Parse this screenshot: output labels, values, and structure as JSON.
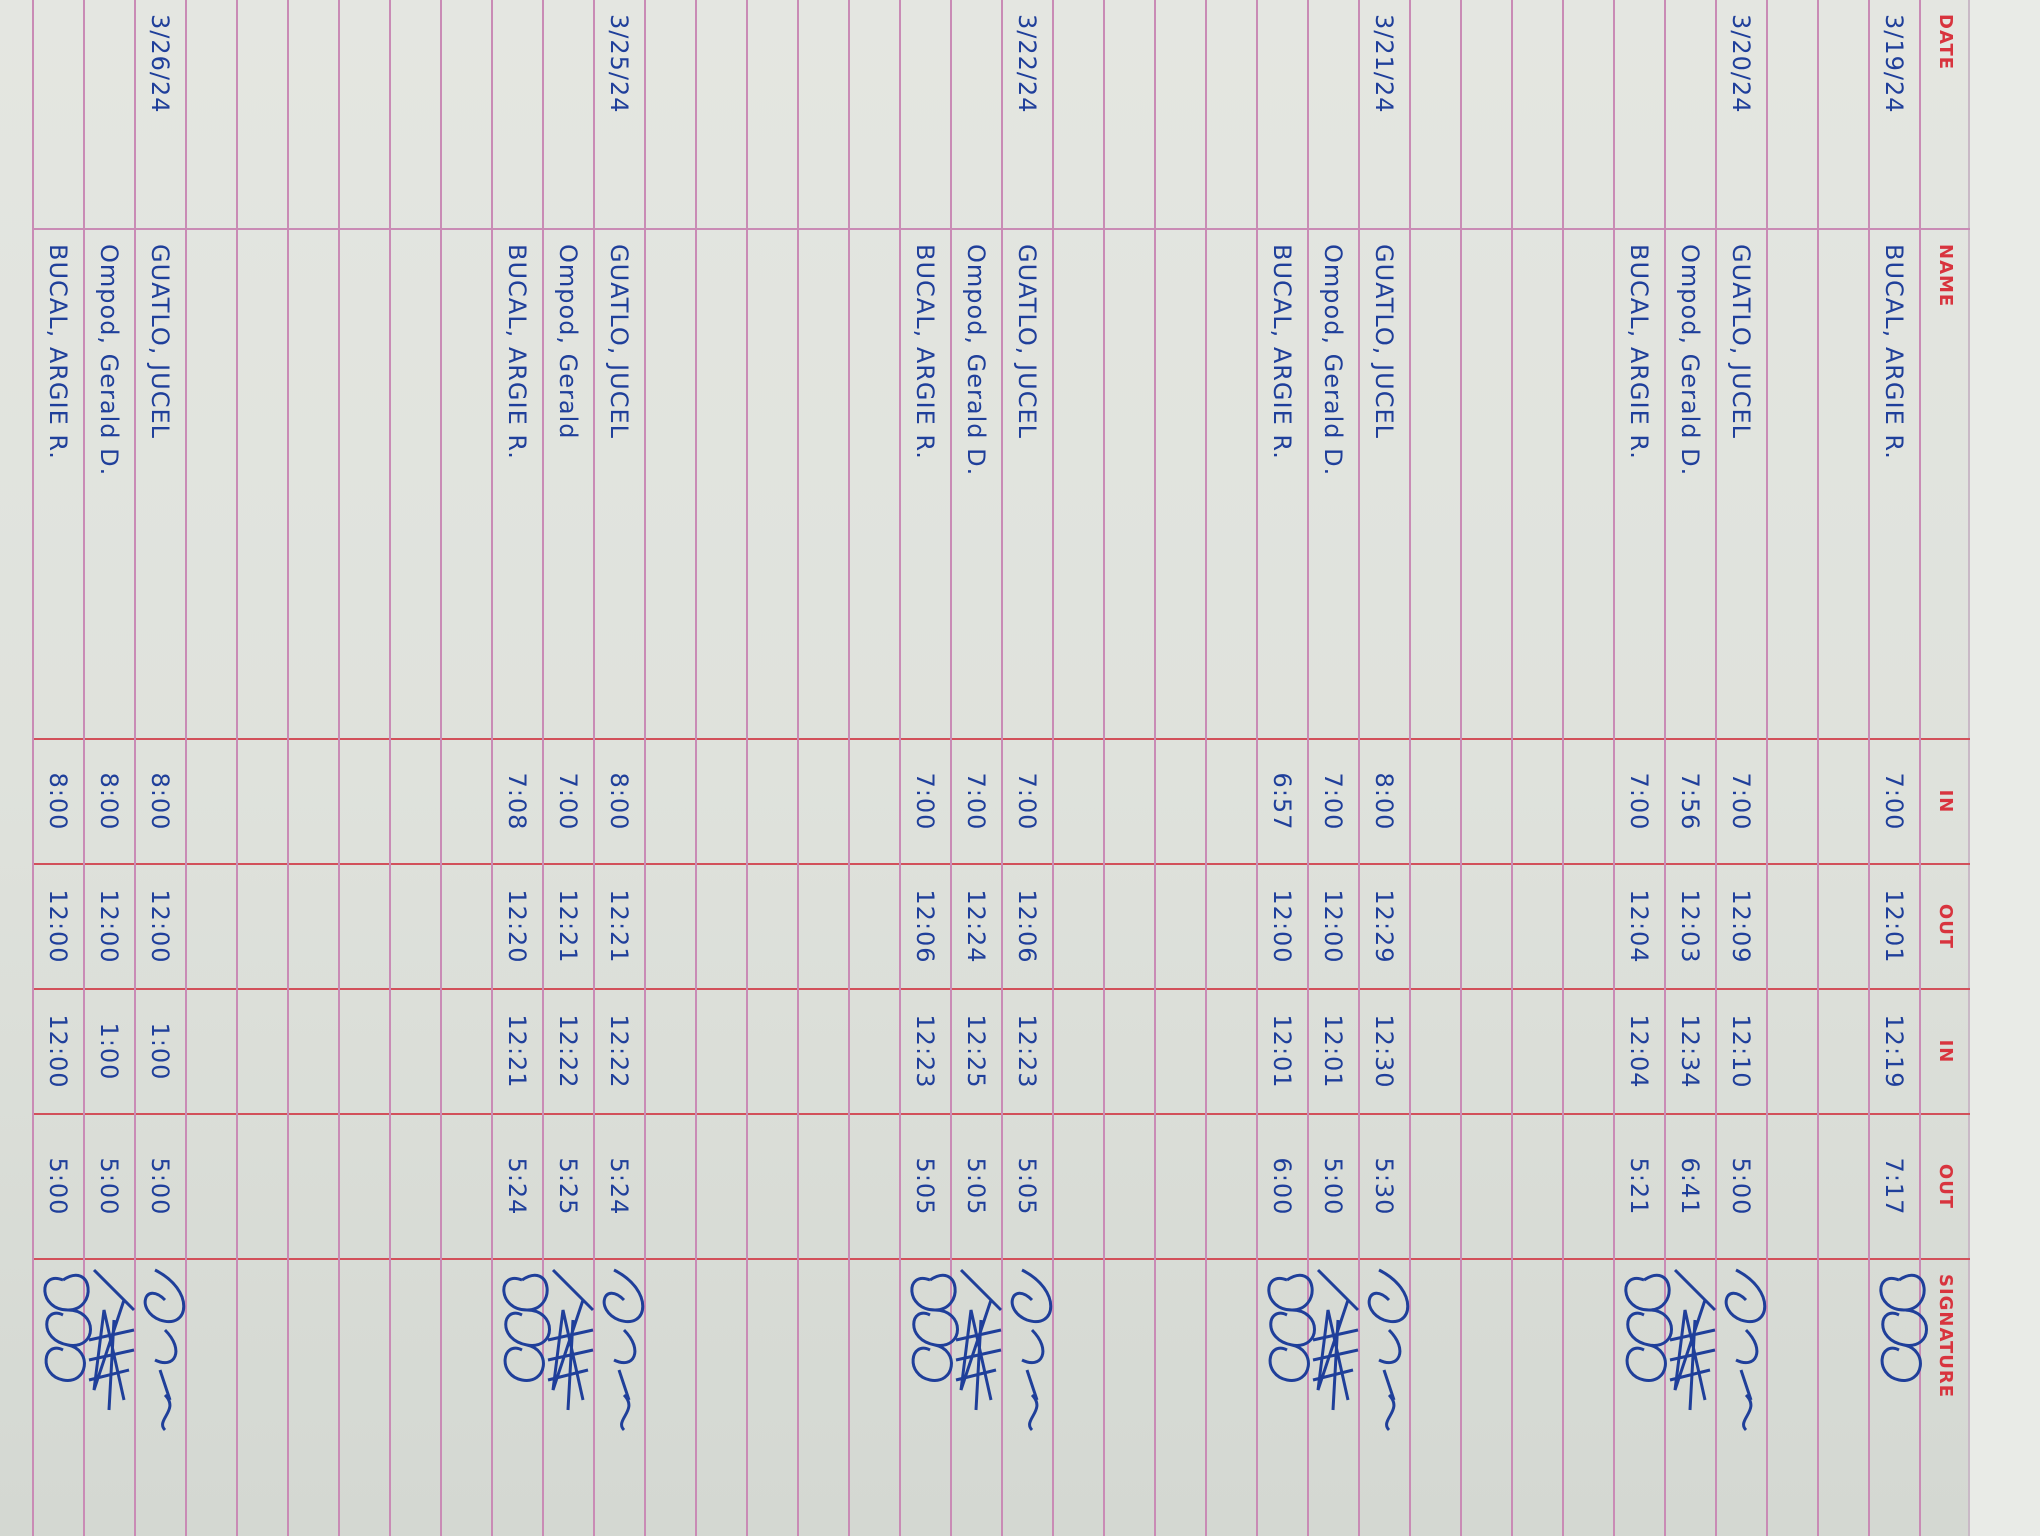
{
  "header": {
    "date": "DATE",
    "name": "NAME",
    "in1": "IN",
    "out1": "OUT",
    "in2": "IN",
    "out2": "OUT",
    "signature": "SIGNATURE"
  },
  "days": [
    {
      "date": "3/19/24",
      "entries": [
        {
          "name": "BUCAL, ARGIE R.",
          "in1": "7:00",
          "out1": "12:01",
          "in2": "12:19",
          "out2": "7:17"
        }
      ]
    },
    {
      "date": "3/20/24",
      "entries": [
        {
          "name": "GUATLO, JUCEL",
          "in1": "7:00",
          "out1": "12:09",
          "in2": "12:10",
          "out2": "5:00"
        },
        {
          "name": "Ompod, Gerald D.",
          "in1": "7:56",
          "out1": "12:03",
          "in2": "12:34",
          "out2": "6:41"
        },
        {
          "name": "BUCAL, ARGIE R.",
          "in1": "7:00",
          "out1": "12:04",
          "in2": "12:04",
          "out2": "5:21"
        }
      ]
    },
    {
      "date": "3/21/24",
      "entries": [
        {
          "name": "GUATLO, JUCEL",
          "in1": "8:00",
          "out1": "12:29",
          "in2": "12:30",
          "out2": "5:30"
        },
        {
          "name": "Ompod, Gerald D.",
          "in1": "7:00",
          "out1": "12:00",
          "in2": "12:01",
          "out2": "5:00"
        },
        {
          "name": "BUCAL, ARGIE R.",
          "in1": "6:57",
          "out1": "12:00",
          "in2": "12:01",
          "out2": "6:00"
        }
      ]
    },
    {
      "date": "3/22/24",
      "entries": [
        {
          "name": "GUATLO, JUCEL",
          "in1": "7:00",
          "out1": "12:06",
          "in2": "12:23",
          "out2": "5:05"
        },
        {
          "name": "Ompod, Gerald D.",
          "in1": "7:00",
          "out1": "12:24",
          "in2": "12:25",
          "out2": "5:05"
        },
        {
          "name": "BUCAL, ARGIE R.",
          "in1": "7:00",
          "out1": "12:06",
          "in2": "12:23",
          "out2": "5:05"
        }
      ]
    },
    {
      "date": "3/25/24",
      "entries": [
        {
          "name": "GUATLO, JUCEL",
          "in1": "8:00",
          "out1": "12:21",
          "in2": "12:22",
          "out2": "5:24"
        },
        {
          "name": "Ompod, Gerald",
          "in1": "7:00",
          "out1": "12:21",
          "in2": "12:22",
          "out2": "5:25"
        },
        {
          "name": "BUCAL, ARGIE R.",
          "in1": "7:08",
          "out1": "12:20",
          "in2": "12:21",
          "out2": "5:24"
        }
      ]
    },
    {
      "date": "3/26/24",
      "entries": [
        {
          "name": "GUATLO, JUCEL",
          "in1": "8:00",
          "out1": "12:00",
          "in2": "1:00",
          "out2": "5:00"
        },
        {
          "name": "Ompod, Gerald D.",
          "in1": "8:00",
          "out1": "12:00",
          "in2": "1:00",
          "out2": "5:00"
        },
        {
          "name": "BUCAL, ARGIE R.",
          "in1": "8:00",
          "out1": "12:00",
          "in2": "12:00",
          "out2": "5:00"
        }
      ]
    }
  ],
  "colors": {
    "ink": "#1f3f9a",
    "rule_pink": "#c98bb5",
    "rule_red": "#d2505a",
    "header_red": "#d8343e",
    "paper": "#e0e3dd"
  }
}
